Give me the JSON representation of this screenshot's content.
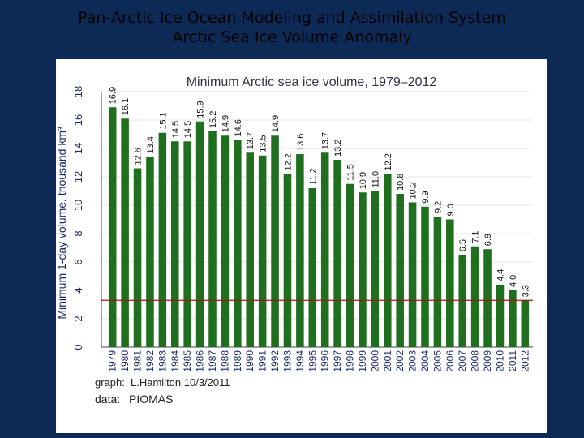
{
  "slide": {
    "title_line1": "Pan-Arctic Ice Ocean Modeling and Assimilation System",
    "title_line2": "Arctic Sea Ice Volume Anomaly",
    "background_color": "#0d2a57"
  },
  "chart_data": {
    "type": "bar",
    "title": "Minimum Arctic sea ice volume, 1979–2012",
    "ylabel": "Minimum 1-day volume, thousand km³",
    "xlabel": "",
    "ylim": [
      0,
      18
    ],
    "yticks": [
      0,
      2,
      4,
      6,
      8,
      10,
      12,
      14,
      16,
      18
    ],
    "grid": true,
    "reference_line": 3.3,
    "bar_color": "#1f6f1f",
    "reference_line_color": "#a01818",
    "categories": [
      "1979",
      "1980",
      "1981",
      "1982",
      "1983",
      "1984",
      "1985",
      "1986",
      "1987",
      "1988",
      "1989",
      "1990",
      "1991",
      "1992",
      "1993",
      "1994",
      "1995",
      "1996",
      "1997",
      "1998",
      "1999",
      "2000",
      "2001",
      "2002",
      "2003",
      "2004",
      "2005",
      "2006",
      "2007",
      "2008",
      "2009",
      "2010",
      "2011",
      "2012"
    ],
    "values": [
      16.9,
      16.1,
      12.6,
      13.4,
      15.1,
      14.5,
      14.5,
      15.9,
      15.2,
      14.9,
      14.6,
      13.7,
      13.5,
      14.9,
      12.2,
      13.6,
      11.2,
      13.7,
      13.2,
      11.5,
      10.9,
      11.0,
      12.2,
      10.8,
      10.2,
      9.9,
      9.2,
      9.0,
      6.5,
      7.1,
      6.9,
      4.4,
      4.0,
      3.3
    ],
    "value_labels": [
      "16.9",
      "16.1",
      "12.6",
      "13.4",
      "15.1",
      "14.5",
      "14.5",
      "15.9",
      "15.2",
      "14.9",
      "14.6",
      "13.7",
      "13.5",
      "14.9",
      "12.2",
      "13.6",
      "11.2",
      "13.7",
      "13.2",
      "11.5",
      "10.9",
      "11.0",
      "12.2",
      "10.8",
      "10.2",
      "9.9",
      "9.2",
      "9.0",
      "6.5",
      "7.1",
      "6.9",
      "4.4",
      "4.0",
      "3.3"
    ],
    "notes": {
      "graph_label": "graph:",
      "graph_value": "L.Hamilton  10/3/2011",
      "data_label": "data:",
      "data_value": "PIOMAS"
    }
  }
}
